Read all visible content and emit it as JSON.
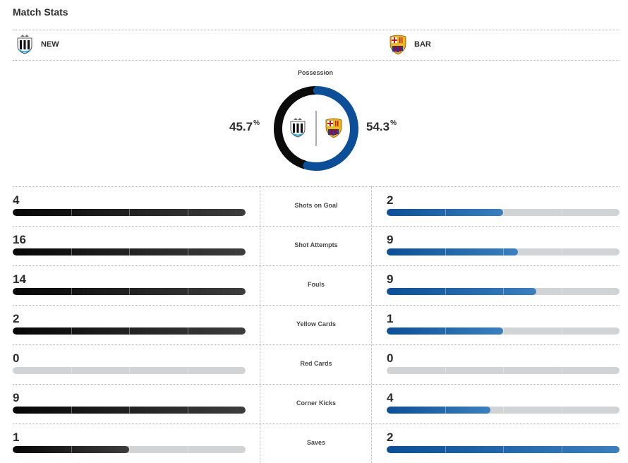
{
  "title": "Match Stats",
  "home": {
    "abbr": "NEW"
  },
  "away": {
    "abbr": "BAR"
  },
  "possession": {
    "label": "Possession",
    "home": "45.7",
    "away": "54.3",
    "unit": "%",
    "home_fraction": 0.457,
    "away_fraction": 0.543
  },
  "colors": {
    "home": "#0b0b0b",
    "away": "#0a4f98",
    "track": "#d2d3d4"
  },
  "stats": [
    {
      "label": "Shots on Goal",
      "home": "4",
      "away": "2",
      "home_fraction": 1.0,
      "away_fraction": 0.5
    },
    {
      "label": "Shot Attempts",
      "home": "16",
      "away": "9",
      "home_fraction": 1.0,
      "away_fraction": 0.5625
    },
    {
      "label": "Fouls",
      "home": "14",
      "away": "9",
      "home_fraction": 1.0,
      "away_fraction": 0.643
    },
    {
      "label": "Yellow Cards",
      "home": "2",
      "away": "1",
      "home_fraction": 1.0,
      "away_fraction": 0.5
    },
    {
      "label": "Red Cards",
      "home": "0",
      "away": "0",
      "home_fraction": 0.0,
      "away_fraction": 0.0
    },
    {
      "label": "Corner Kicks",
      "home": "9",
      "away": "4",
      "home_fraction": 1.0,
      "away_fraction": 0.444
    },
    {
      "label": "Saves",
      "home": "1",
      "away": "2",
      "home_fraction": 0.5,
      "away_fraction": 1.0
    }
  ]
}
